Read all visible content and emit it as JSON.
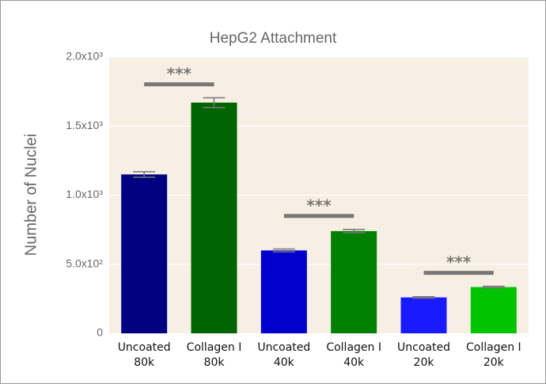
{
  "chart_data": {
    "type": "bar",
    "title": "HepG2 Attachment",
    "y_label": "Number of Nuclei",
    "categories": [
      [
        "Uncoated",
        "80k"
      ],
      [
        "Collagen I",
        "80k"
      ],
      [
        "Uncoated",
        "40k"
      ],
      [
        "Collagen I",
        "40k"
      ],
      [
        "Uncoated",
        "20k"
      ],
      [
        "Collagen I",
        "20k"
      ]
    ],
    "values": [
      1150,
      1670,
      600,
      740,
      260,
      335
    ],
    "errors": [
      20,
      35,
      10,
      12,
      5,
      5
    ],
    "colors": [
      "#000080",
      "#006400",
      "#0000cd",
      "#008000",
      "#1a1aff",
      "#00c400"
    ],
    "annotations": [
      "***",
      "***",
      "***"
    ],
    "ylim": [
      0,
      2000
    ],
    "yticks": [
      0,
      {
        "value": 500,
        "label": "5.0x10²"
      },
      {
        "value": 1000,
        "label": "1.0x10³"
      },
      {
        "value": 1500,
        "label": "1.5x10³"
      },
      {
        "value": 2000,
        "label": "2.0x10³"
      }
    ],
    "grid": true
  }
}
